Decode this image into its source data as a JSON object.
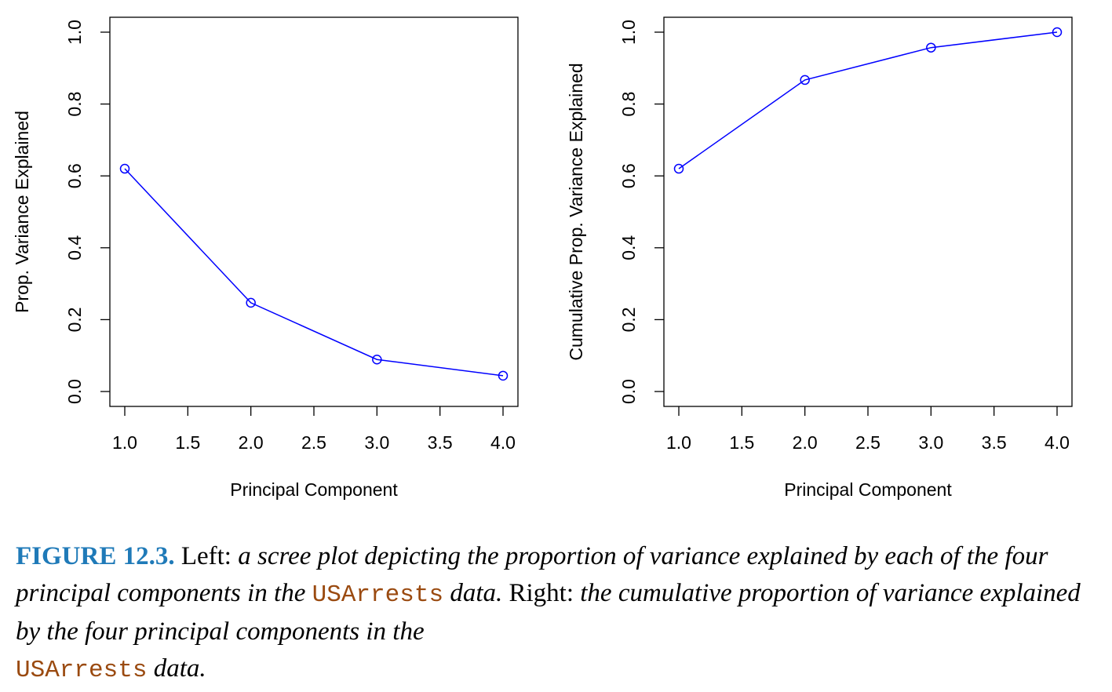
{
  "chart_data": [
    {
      "type": "line",
      "x": [
        1,
        2,
        3,
        4
      ],
      "y": [
        0.62,
        0.247,
        0.089,
        0.044
      ],
      "xlabel": "Principal Component",
      "ylabel": "Prop. Variance Explained",
      "xlim": [
        1,
        4
      ],
      "ylim": [
        0,
        1
      ],
      "xticks": [
        "1.0",
        "1.5",
        "2.0",
        "2.5",
        "3.0",
        "3.5",
        "4.0"
      ],
      "yticks": [
        "0.0",
        "0.2",
        "0.4",
        "0.6",
        "0.8",
        "1.0"
      ],
      "line_color": "#0000ff",
      "marker": "open-circle",
      "grid": false
    },
    {
      "type": "line",
      "x": [
        1,
        2,
        3,
        4
      ],
      "y": [
        0.62,
        0.867,
        0.957,
        1.0
      ],
      "xlabel": "Principal Component",
      "ylabel": "Cumulative Prop. Variance Explained",
      "xlim": [
        1,
        4
      ],
      "ylim": [
        0,
        1
      ],
      "xticks": [
        "1.0",
        "1.5",
        "2.0",
        "2.5",
        "3.0",
        "3.5",
        "4.0"
      ],
      "yticks": [
        "0.0",
        "0.2",
        "0.4",
        "0.6",
        "0.8",
        "1.0"
      ],
      "line_color": "#0000ff",
      "marker": "open-circle",
      "grid": false
    }
  ],
  "caption": {
    "label": "FIGURE 12.3.",
    "left_word": "Left:",
    "left_text": "a scree plot depicting the proportion of variance explained by each of the four principal components in the",
    "dataset": "USArrests",
    "data_word": "data.",
    "right_word": "Right:",
    "right_text": "the cumulative proportion of variance explained by the four principal components in the",
    "dataset_2": "USArrests",
    "end_text": "data."
  },
  "colors": {
    "series": "#0000ff",
    "caption_label": "#1f7ab8",
    "code": "#9a4a10"
  }
}
